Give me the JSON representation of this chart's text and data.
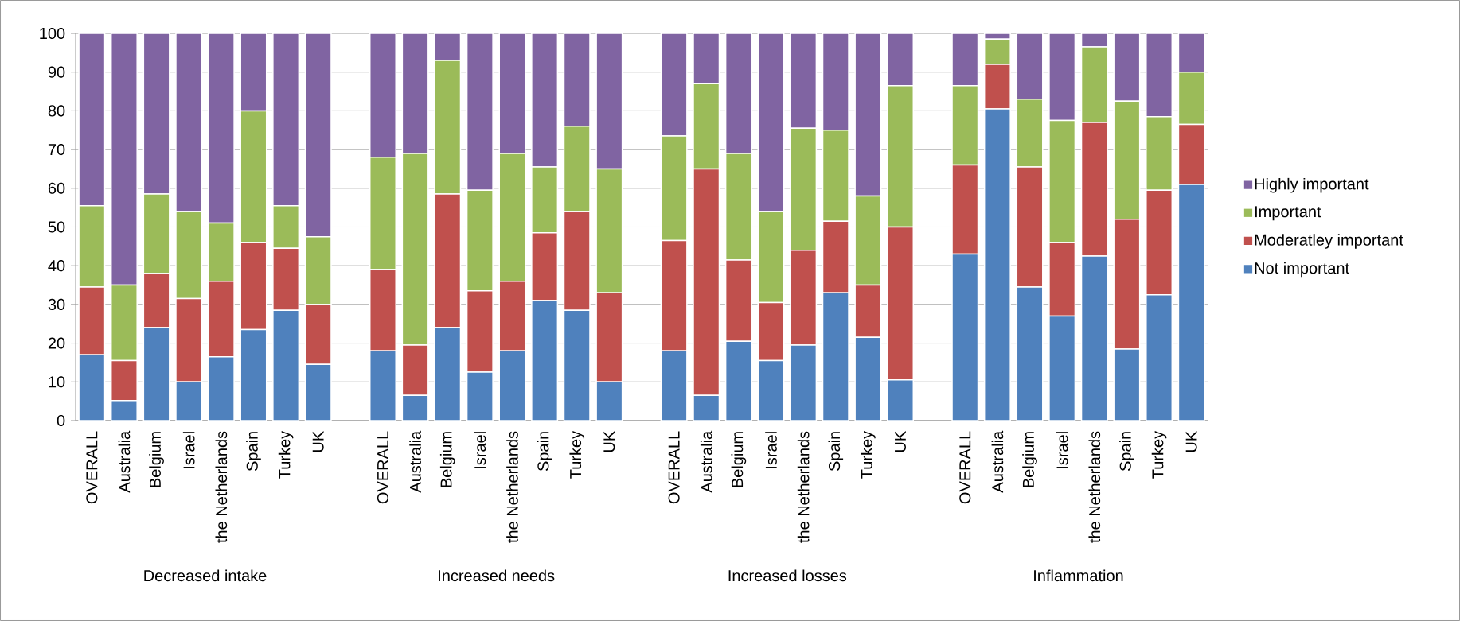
{
  "chart_data": {
    "type": "bar",
    "stacked": true,
    "categories": [
      "OVERALL",
      "Australia",
      "Belgium",
      "Israel",
      "the Netherlands",
      "Spain",
      "Turkey",
      "UK",
      null,
      "OVERALL",
      "Australia",
      "Belgium",
      "Israel",
      "the Netherlands",
      "Spain",
      "Turkey",
      "UK",
      null,
      "OVERALL",
      "Australia",
      "Belgium",
      "Israel",
      "the Netherlands",
      "Spain",
      "Turkey",
      "UK",
      null,
      "OVERALL",
      "Australia",
      "Belgium",
      "Israel",
      "the Netherlands",
      "Spain",
      "Turkey",
      "UK"
    ],
    "series": [
      {
        "name": "Not important",
        "color": "#4f81bd",
        "values": [
          17,
          5.2,
          24,
          10,
          16.5,
          23.5,
          28.5,
          14.5,
          null,
          18,
          6.5,
          24,
          12.5,
          18,
          31,
          28.5,
          10,
          null,
          18,
          6.5,
          20.5,
          15.5,
          19.5,
          33,
          21.5,
          10.5,
          null,
          43,
          80.5,
          34.5,
          27,
          42.5,
          18.5,
          32.5,
          61
        ]
      },
      {
        "name": "Moderatley important",
        "color": "#c0504d",
        "values": [
          17.5,
          10.3,
          14,
          21.5,
          19.5,
          22.5,
          16,
          15.5,
          null,
          21,
          13,
          34.5,
          21,
          18,
          17.5,
          25.5,
          23,
          null,
          28.5,
          58.5,
          21,
          15,
          24.5,
          18.5,
          13.5,
          39.5,
          null,
          23,
          11.5,
          31,
          19,
          34.5,
          33.5,
          27,
          15.5
        ]
      },
      {
        "name": "Important",
        "color": "#9bbb59",
        "values": [
          21,
          19.5,
          20.5,
          22.5,
          15,
          34,
          11,
          17.5,
          null,
          29,
          49.5,
          34.5,
          26,
          33,
          17,
          22,
          32,
          null,
          27,
          22,
          27.5,
          23.5,
          31.5,
          23.5,
          23,
          36.5,
          null,
          20.5,
          6.5,
          17.5,
          31.5,
          19.5,
          30.5,
          19,
          13.5
        ]
      },
      {
        "name": "Highly important",
        "color": "#8064a2",
        "values": [
          44.5,
          65,
          41.5,
          46,
          49,
          20,
          44.5,
          52.5,
          null,
          32,
          31,
          7,
          40.5,
          31,
          34.5,
          24,
          35,
          null,
          26.5,
          13,
          31,
          46,
          24.5,
          25,
          42,
          13.5,
          null,
          13.5,
          1.5,
          17,
          22.5,
          3.5,
          17.5,
          21.5,
          10
        ]
      }
    ],
    "annotations": [
      "Decreased intake",
      "Increased needs",
      "Increased losses",
      "Inflammation"
    ],
    "ylim": [
      0,
      100
    ],
    "yticks": [
      0,
      10,
      20,
      30,
      40,
      50,
      60,
      70,
      80,
      90,
      100
    ],
    "grid": "y",
    "legend": "right"
  }
}
